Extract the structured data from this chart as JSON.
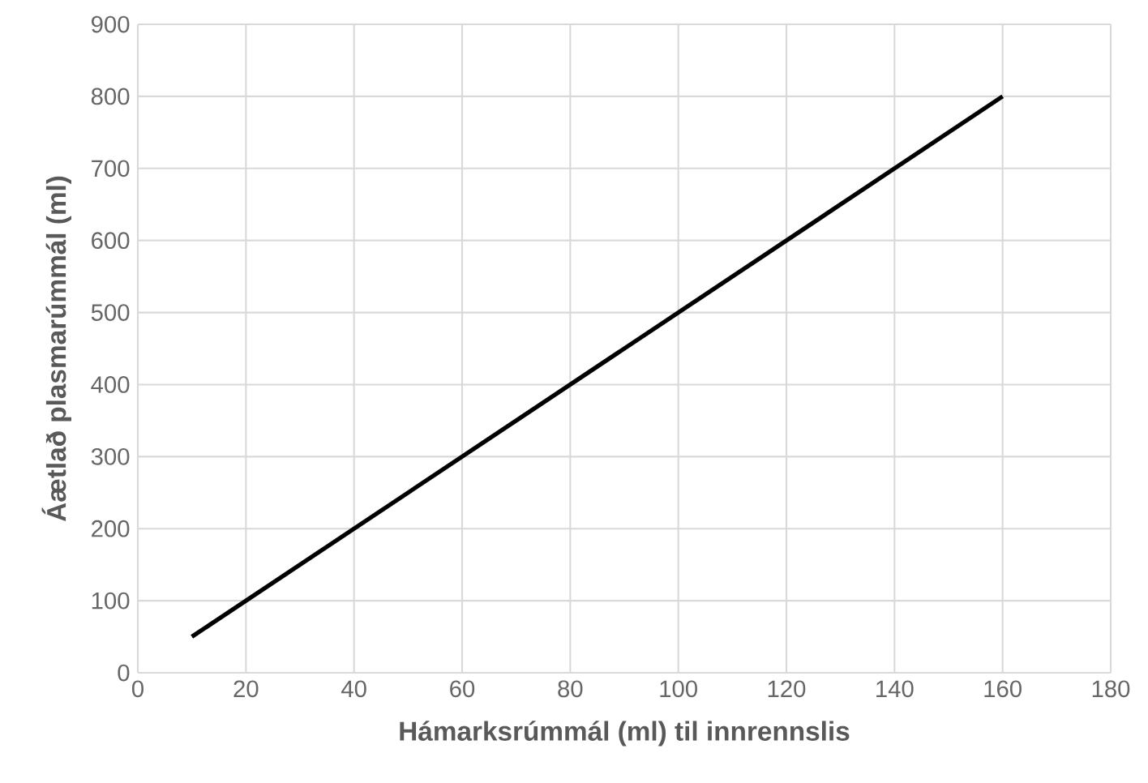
{
  "chart_data": {
    "type": "line",
    "xlabel": "Hámarksrúmmál (ml) til innrennslis",
    "ylabel": "Áætlað plasmarúmmál (ml)",
    "x": [
      10,
      160
    ],
    "series": [
      {
        "color": "#000000",
        "values": [
          50,
          800
        ]
      }
    ],
    "xlim": [
      0,
      180
    ],
    "ylim": [
      0,
      900
    ],
    "xticks": [
      0,
      20,
      40,
      60,
      80,
      100,
      120,
      140,
      160,
      180
    ],
    "yticks": [
      0,
      100,
      200,
      300,
      400,
      500,
      600,
      700,
      800,
      900
    ],
    "grid": true
  }
}
